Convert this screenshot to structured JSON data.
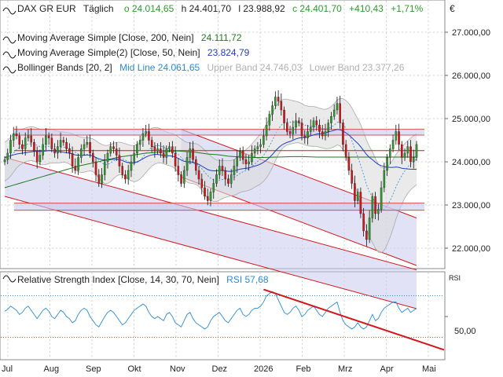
{
  "header": {
    "symbol": "DAX GR EUR",
    "interval": "Täglich",
    "open": "o 24.014,65",
    "high": "h 24.401,70",
    "low": "l 23.988,92",
    "close": "c 24.401,70",
    "change": "+410,43",
    "change_pct": "+1,71%",
    "currency": "€"
  },
  "indicators": [
    {
      "name": "Moving Average Simple [Close, 200, Nein]",
      "value": "24.111,72",
      "color": "#1f7a1f"
    },
    {
      "name": "Moving Average Simple(2) [Close, 50, Nein]",
      "value": "23.824,79",
      "color": "#1f3fbf"
    },
    {
      "name": "Bollinger Bands [20, 2]",
      "mid": "Mid Line 24.061,65",
      "upper": "Upper Band 24.746,03",
      "lower": "Lower Band 23.377,26",
      "color": "#2a8ad8"
    }
  ],
  "rsi_panel": {
    "name": "Relative Strength Index [Close, 14, 30, 70, Nein]",
    "value": "RSI 57,68",
    "axis_title": "RSI",
    "tick": "50,00"
  },
  "chart_data": {
    "type": "candlestick",
    "ylim": [
      21600,
      27600
    ],
    "y_ticks": [
      22000,
      23000,
      24000,
      25000,
      26000,
      27000
    ],
    "y_tick_labels": [
      "22.000,00",
      "23.000,00",
      "24.000,00",
      "25.000,00",
      "26.000,00",
      "27.000,00"
    ],
    "x_labels": [
      "Jul",
      "Aug",
      "Sep",
      "Okt",
      "Nov",
      "Dez",
      "2026",
      "Feb",
      "Mrz",
      "Apr",
      "Mai"
    ],
    "grid": true,
    "close": [
      24050,
      24200,
      24500,
      24650,
      24600,
      24400,
      24300,
      24550,
      24600,
      24450,
      24250,
      24000,
      24150,
      24400,
      24600,
      24550,
      24300,
      24200,
      24350,
      24500,
      24450,
      24300,
      24200,
      23900,
      23800,
      24100,
      24300,
      24400,
      24450,
      24200,
      24000,
      23700,
      23500,
      23700,
      24000,
      24200,
      24350,
      24300,
      24150,
      23900,
      23700,
      23600,
      23800,
      24000,
      24200,
      24400,
      24500,
      24650,
      24700,
      24500,
      24350,
      24250,
      24300,
      24200,
      24100,
      24300,
      24350,
      24200,
      23900,
      23700,
      23500,
      23800,
      24100,
      24300,
      24050,
      23800,
      23600,
      23400,
      23200,
      23100,
      23300,
      23500,
      23700,
      23900,
      23800,
      23600,
      23500,
      23700,
      23900,
      24100,
      24250,
      24050,
      23950,
      24000,
      24200,
      24300,
      24350,
      24400,
      24600,
      24850,
      25100,
      25300,
      25500,
      25400,
      25200,
      24900,
      24700,
      24650,
      24800,
      24950,
      24900,
      24600,
      24550,
      24700,
      24800,
      24950,
      24850,
      24700,
      24600,
      24700,
      24900,
      25050,
      25200,
      25350,
      24900,
      24400,
      24100,
      23800,
      23500,
      23100,
      23300,
      22800,
      22400,
      22200,
      22700,
      23200,
      22800,
      22900,
      23400,
      23800,
      24100,
      24300,
      24500,
      24700,
      24400,
      24100,
      24200,
      24350,
      24000,
      24100,
      24401.7
    ],
    "sma200": [
      23400,
      23420,
      23440,
      23460,
      23480,
      23500,
      23520,
      23540,
      23560,
      23580,
      23600,
      23620,
      23640,
      23660,
      23680,
      23700,
      23720,
      23740,
      23760,
      23780,
      23800,
      23820,
      23840,
      23860,
      23880,
      23900,
      23915,
      23930,
      23945,
      23960,
      23975,
      23990,
      24005,
      24020,
      24035,
      24050,
      24065,
      24080,
      24095,
      24110,
      24120,
      24130,
      24140,
      24150,
      24160,
      24170,
      24180,
      24190,
      24200,
      24205,
      24210,
      24215,
      24220,
      24225,
      24230,
      24235,
      24240,
      24245,
      24250,
      24250,
      24245,
      24240,
      24235,
      24230,
      24225,
      24220,
      24210,
      24200,
      24190,
      24180,
      24175,
      24170,
      24165,
      24160,
      24150,
      24140,
      24130,
      24125,
      24120,
      24115,
      24110,
      24108,
      24106,
      24104,
      24102,
      24100,
      24100,
      24100,
      24100,
      24102,
      24104,
      24106,
      24108,
      24110,
      24112,
      24114,
      24116,
      24118,
      24120,
      24120,
      24120,
      24120,
      24118,
      24116,
      24114,
      24112,
      24110,
      24110,
      24110,
      24110,
      24110,
      24110,
      24110,
      24110,
      24110,
      24110,
      24110,
      24110,
      24110,
      24110,
      24110,
      24110,
      24110,
      24110,
      24110,
      24110,
      24110,
      24110,
      24110,
      24110,
      24110,
      24110,
      24110,
      24110,
      24110,
      24110,
      24110,
      24110,
      24110,
      24110,
      24111.72
    ],
    "sma50": [
      24100,
      24120,
      24140,
      24160,
      24180,
      24190,
      24200,
      24210,
      24220,
      24230,
      24240,
      24240,
      24240,
      24240,
      24250,
      24260,
      24260,
      24250,
      24240,
      24230,
      24220,
      24210,
      24200,
      24180,
      24160,
      24150,
      24150,
      24150,
      24160,
      24150,
      24130,
      24100,
      24070,
      24050,
      24040,
      24040,
      24050,
      24060,
      24060,
      24050,
      24030,
      24000,
      23980,
      23970,
      23980,
      24000,
      24030,
      24070,
      24110,
      24140,
      24160,
      24170,
      24170,
      24160,
      24150,
      24140,
      24140,
      24130,
      24110,
      24080,
      24040,
      24010,
      24000,
      24000,
      23990,
      23970,
      23940,
      23900,
      23860,
      23820,
      23800,
      23790,
      23790,
      23800,
      23800,
      23790,
      23780,
      23780,
      23790,
      23810,
      23830,
      23840,
      23850,
      23860,
      23880,
      23900,
      23920,
      23950,
      23990,
      24040,
      24100,
      24170,
      24250,
      24320,
      24380,
      24420,
      24450,
      24470,
      24500,
      24530,
      24550,
      24560,
      24570,
      24580,
      24600,
      24620,
      24640,
      24650,
      24660,
      24670,
      24690,
      24710,
      24730,
      24750,
      24740,
      24710,
      24670,
      24620,
      24560,
      24490,
      24430,
      24350,
      24260,
      24170,
      24100,
      24050,
      23990,
      23940,
      23910,
      23890,
      23880,
      23870,
      23870,
      23880,
      23870,
      23850,
      23840,
      23835,
      23830,
      23828,
      23824.79
    ],
    "bb_mid": [
      24000,
      24050,
      24120,
      24200,
      24280,
      24330,
      24360,
      24390,
      24410,
      24420,
      24410,
      24380,
      24350,
      24340,
      24350,
      24360,
      24360,
      24350,
      24340,
      24340,
      24340,
      24330,
      24310,
      24270,
      24220,
      24180,
      24160,
      24160,
      24170,
      24170,
      24150,
      24100,
      24030,
      23970,
      23940,
      23940,
      23970,
      24020,
      24060,
      24080,
      24070,
      24040,
      24000,
      23970,
      23960,
      23980,
      24030,
      24110,
      24200,
      24280,
      24340,
      24370,
      24380,
      24370,
      24340,
      24310,
      24290,
      24270,
      24230,
      24170,
      24100,
      24030,
      23990,
      23970,
      23960,
      23950,
      23910,
      23840,
      23760,
      23680,
      23620,
      23580,
      23560,
      23570,
      23590,
      23600,
      23610,
      23620,
      23640,
      23680,
      23730,
      23770,
      23800,
      23840,
      23890,
      23950,
      24010,
      24070,
      24150,
      24250,
      24370,
      24500,
      24640,
      24760,
      24850,
      24900,
      24920,
      24920,
      24920,
      24920,
      24910,
      24880,
      24850,
      24830,
      24820,
      24820,
      24810,
      24790,
      24770,
      24760,
      24770,
      24800,
      24850,
      24910,
      24920,
      24870,
      24780,
      24650,
      24490,
      24300,
      24120,
      23920,
      23700,
      23470,
      23300,
      23180,
      23040,
      22930,
      22880,
      22900,
      22980,
      23100,
      23250,
      23420,
      23560,
      23680,
      23790,
      23880,
      23950,
      24010,
      24061.65
    ],
    "bb_width": [
      900,
      900,
      900,
      880,
      850,
      820,
      800,
      780,
      780,
      780,
      790,
      800,
      810,
      820,
      820,
      800,
      780,
      760,
      740,
      720,
      700,
      700,
      720,
      760,
      800,
      820,
      820,
      800,
      780,
      760,
      760,
      780,
      820,
      860,
      880,
      880,
      860,
      820,
      780,
      750,
      740,
      760,
      790,
      820,
      840,
      850,
      860,
      880,
      900,
      900,
      880,
      850,
      820,
      790,
      770,
      760,
      760,
      770,
      790,
      820,
      860,
      900,
      920,
      930,
      930,
      940,
      960,
      990,
      1020,
      1040,
      1030,
      1000,
      960,
      920,
      880,
      850,
      830,
      820,
      830,
      850,
      880,
      920,
      960,
      1000,
      1040,
      1080,
      1120,
      1160,
      1200,
      1240,
      1260,
      1260,
      1240,
      1200,
      1150,
      1100,
      1060,
      1020,
      990,
      960,
      940,
      930,
      920,
      920,
      920,
      920,
      910,
      900,
      900,
      910,
      930,
      960,
      1000,
      1040,
      1100,
      1180,
      1280,
      1400,
      1520,
      1640,
      1760,
      1880,
      1980,
      2060,
      2100,
      2100,
      2080,
      2040,
      1980,
      1900,
      1800,
      1700,
      1600,
      1500,
      1400,
      1320,
      1260,
      1220,
      1200,
      1190,
      1180,
      1200,
      1368.77
    ],
    "rsi": [
      55,
      57,
      60,
      58,
      56,
      52,
      54,
      58,
      60,
      56,
      52,
      48,
      52,
      56,
      58,
      55,
      50,
      48,
      52,
      56,
      54,
      50,
      48,
      44,
      46,
      52,
      56,
      58,
      56,
      50,
      46,
      42,
      40,
      45,
      50,
      54,
      56,
      54,
      50,
      46,
      42,
      44,
      48,
      52,
      56,
      58,
      60,
      62,
      60,
      54,
      50,
      48,
      50,
      48,
      46,
      52,
      54,
      50,
      44,
      42,
      40,
      46,
      52,
      54,
      48,
      44,
      42,
      40,
      38,
      40,
      46,
      50,
      52,
      54,
      50,
      46,
      44,
      48,
      52,
      56,
      58,
      52,
      50,
      52,
      56,
      58,
      58,
      60,
      64,
      70,
      72,
      74,
      72,
      66,
      60,
      54,
      52,
      54,
      58,
      60,
      56,
      50,
      52,
      56,
      58,
      60,
      56,
      52,
      50,
      54,
      58,
      60,
      62,
      64,
      54,
      46,
      42,
      40,
      38,
      40,
      44,
      40,
      38,
      40,
      46,
      52,
      46,
      48,
      54,
      58,
      60,
      62,
      64,
      64,
      58,
      54,
      56,
      58,
      54,
      56,
      57.68
    ],
    "trendlines": [
      {
        "type": "horizontal",
        "y": 24750,
        "color": "#d4161b"
      },
      {
        "type": "horizontal",
        "y": 24620,
        "color": "#d4161b"
      },
      {
        "type": "horizontal",
        "y": 24260,
        "color": "#d4161b"
      },
      {
        "type": "horizontal",
        "y": 23040,
        "color": "#d4161b"
      },
      {
        "type": "horizontal",
        "y": 22880,
        "color": "#d4161b"
      }
    ],
    "colors": {
      "up": "#2e9a2e",
      "down": "#d4161b",
      "wick": "#111111",
      "band_fill": "#dcdcdc",
      "channel_fill": "#c8caee",
      "grid": "#d0d0d0"
    }
  }
}
